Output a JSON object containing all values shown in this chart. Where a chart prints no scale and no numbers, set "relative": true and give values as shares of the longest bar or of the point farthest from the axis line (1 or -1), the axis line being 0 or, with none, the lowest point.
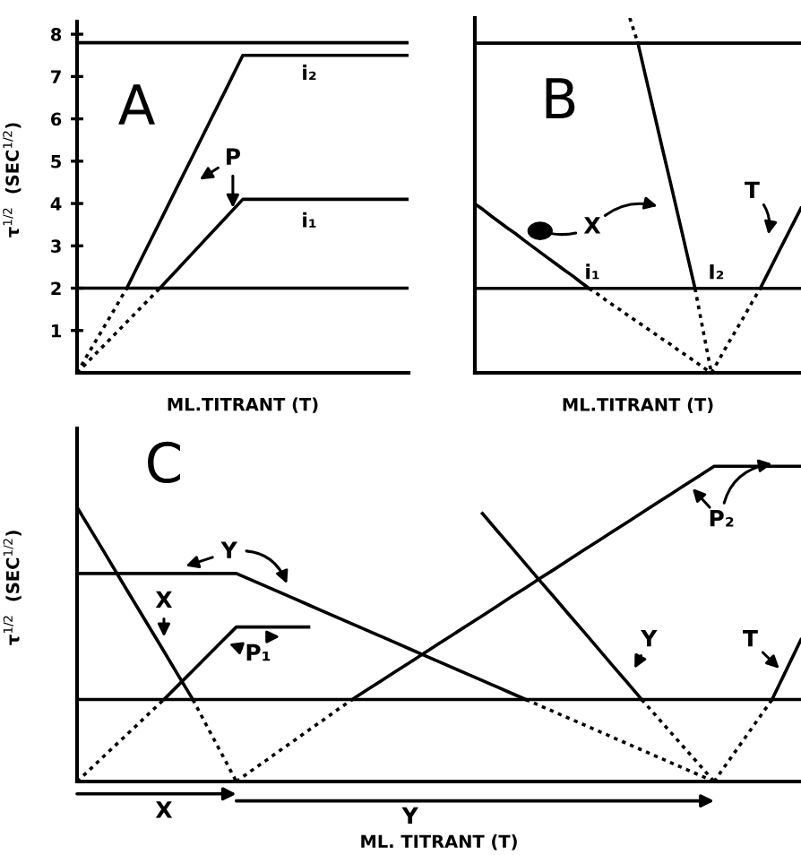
{
  "chart_data": [
    {
      "type": "line",
      "title": "A",
      "xlabel": "ML.TITRANT (T)",
      "ylabel": "τ$^{1/2}$  (SEC$^{1/2}$)",
      "categories": [
        null,
        null,
        null,
        null,
        null,
        null,
        null,
        null,
        null,
        null,
        null,
        null,
        null,
        null,
        null,
        null,
        null,
        null,
        null,
        null,
        null
      ],
      "ylim": [
        0,
        8.3
      ],
      "yticks": [
        1,
        2,
        3,
        4,
        5,
        6,
        7,
        8
      ],
      "tick_labels": "y",
      "ref_lines": [
        {
          "axis": "y",
          "value": 7.8
        },
        {
          "axis": "y",
          "value": 2
        }
      ],
      "annotations": [
        "P"
      ],
      "series": [
        {
          "color": "#000000",
          "line_style": "dotted",
          "values": [
            0,
            0.67,
            1.33,
            2,
            null,
            null,
            null,
            null,
            null,
            null,
            null,
            null,
            null,
            null,
            null,
            null,
            null,
            null,
            null,
            null,
            null
          ]
        },
        {
          "name": "i₂",
          "color": "#000000",
          "line_style": "solid",
          "values": [
            null,
            null,
            null,
            2,
            2.79,
            3.57,
            4.36,
            5.14,
            5.93,
            6.71,
            7.5,
            7.5,
            7.5,
            7.5,
            7.5,
            7.5,
            7.5,
            7.5,
            7.5,
            7.5,
            7.5
          ]
        },
        {
          "color": "#000000",
          "line_style": "dotted",
          "values": [
            0,
            0.4,
            0.8,
            1.2,
            1.6,
            2,
            null,
            null,
            null,
            null,
            null,
            null,
            null,
            null,
            null,
            null,
            null,
            null,
            null,
            null,
            null
          ]
        },
        {
          "name": "i₁",
          "color": "#000000",
          "line_style": "solid",
          "values": [
            null,
            null,
            null,
            null,
            null,
            2,
            2.42,
            2.84,
            3.26,
            3.68,
            4.1,
            4.1,
            4.1,
            4.1,
            4.1,
            4.1,
            4.1,
            4.1,
            4.1,
            4.1,
            4.1
          ]
        }
      ]
    },
    {
      "type": "line",
      "title": "B",
      "xlabel": "ML.TITRANT (T)",
      "categories": [
        null,
        null,
        null,
        null,
        null,
        null,
        null,
        null,
        null,
        null,
        null,
        null,
        null,
        null,
        null,
        null,
        null,
        null,
        null,
        null,
        null,
        null,
        null,
        null,
        null,
        null,
        null,
        null,
        null,
        null,
        null,
        null,
        null,
        null,
        null,
        null,
        null,
        null,
        null,
        null,
        null
      ],
      "relative": true,
      "tick_labels": false,
      "ref_lines": [
        {
          "axis": "y",
          "value": 0.929
        },
        {
          "axis": "y",
          "value": 0.238
        }
      ],
      "annotations": [
        "X",
        "T"
      ],
      "series": [
        {
          "name": "i₁",
          "color": "#000000",
          "line_style": "solid",
          "values": [
            0.476,
            0.46,
            0.442,
            0.425,
            0.408,
            0.392,
            0.374,
            0.357,
            0.34,
            0.323,
            0.306,
            0.289,
            0.273,
            0.255,
            0.238,
            null,
            null,
            null,
            null,
            null,
            null,
            null,
            null,
            null,
            null,
            null,
            null,
            null,
            null,
            null,
            null,
            null,
            null,
            null,
            null,
            null,
            null,
            null,
            null,
            null,
            null
          ]
        },
        {
          "color": "#000000",
          "line_style": "dotted",
          "values": [
            null,
            null,
            null,
            null,
            null,
            null,
            null,
            null,
            null,
            null,
            null,
            null,
            null,
            null,
            0.238,
            0.223,
            0.206,
            0.19,
            0.175,
            0.158,
            0.143,
            0.127,
            0.111,
            0.095,
            0.08,
            0.063,
            0.048,
            0.032,
            0.015,
            0,
            null,
            null,
            null,
            null,
            null,
            null,
            null,
            null,
            null,
            null,
            null
          ]
        },
        {
          "color": "#000000",
          "line_style": "dotted",
          "values": [
            null,
            null,
            null,
            null,
            null,
            null,
            null,
            null,
            null,
            null,
            null,
            null,
            null,
            null,
            null,
            null,
            null,
            null,
            null,
            1,
            0.929,
            null,
            null,
            null,
            null,
            null,
            null,
            null,
            null,
            null,
            null,
            null,
            null,
            null,
            null,
            null,
            null,
            null,
            null,
            null,
            null
          ]
        },
        {
          "name": "I₂",
          "color": "#000000",
          "line_style": "solid",
          "values": [
            null,
            null,
            null,
            null,
            null,
            null,
            null,
            null,
            null,
            null,
            null,
            null,
            null,
            null,
            null,
            null,
            null,
            null,
            null,
            null,
            0.929,
            0.83,
            0.731,
            0.632,
            0.535,
            0.436,
            0.337,
            0.238,
            null,
            null,
            null,
            null,
            null,
            null,
            null,
            null,
            null,
            null,
            null,
            null,
            null
          ]
        },
        {
          "color": "#000000",
          "line_style": "dotted",
          "values": [
            null,
            null,
            null,
            null,
            null,
            null,
            null,
            null,
            null,
            null,
            null,
            null,
            null,
            null,
            null,
            null,
            null,
            null,
            null,
            null,
            null,
            null,
            null,
            null,
            null,
            null,
            null,
            0.238,
            0.119,
            0,
            null,
            null,
            null,
            null,
            null,
            null,
            null,
            null,
            null,
            null,
            null
          ]
        },
        {
          "color": "#000000",
          "line_style": "dotted",
          "values": [
            null,
            null,
            null,
            null,
            null,
            null,
            null,
            null,
            null,
            null,
            null,
            null,
            null,
            null,
            null,
            null,
            null,
            null,
            null,
            null,
            null,
            null,
            null,
            null,
            null,
            null,
            null,
            null,
            null,
            0,
            0.039,
            0.08,
            0.119,
            0.158,
            0.199,
            0.238,
            null,
            null,
            null,
            null,
            null
          ]
        },
        {
          "color": "#000000",
          "line_style": "solid",
          "values": [
            null,
            null,
            null,
            null,
            null,
            null,
            null,
            null,
            null,
            null,
            null,
            null,
            null,
            null,
            null,
            null,
            null,
            null,
            null,
            null,
            null,
            null,
            null,
            null,
            null,
            null,
            null,
            null,
            null,
            null,
            null,
            null,
            null,
            null,
            null,
            0.238,
            0.283,
            0.329,
            0.374,
            0.419,
            0.464
          ]
        }
      ]
    },
    {
      "type": "line",
      "title": "C",
      "xlabel": "ML. TITRANT (T)",
      "ylabel": "τ$^{1/2}$  (SEC$^{1/2}$)",
      "relative": true,
      "tick_labels": false,
      "categories": [
        null,
        null,
        null,
        null,
        null,
        null,
        null,
        null,
        null,
        null,
        null,
        null,
        null,
        null,
        null,
        null,
        null,
        null,
        null,
        null,
        null,
        null,
        null,
        null,
        null,
        null,
        null,
        null,
        null,
        null,
        null,
        null,
        null,
        null,
        null,
        null,
        null,
        null,
        null,
        null,
        null,
        null,
        null,
        null,
        null,
        null,
        null,
        null,
        null,
        null,
        null
      ],
      "ref_lines": [
        {
          "axis": "y",
          "value": 0.26
        }
      ],
      "annotations": [
        "X",
        "Y",
        "P₁",
        "P₂",
        "Y",
        "T",
        "X",
        "Y"
      ],
      "series": [
        {
          "color": "#000000",
          "line_style": "solid",
          "values": [
            0.87,
            0.794,
            0.718,
            0.641,
            0.565,
            0.489,
            0.413,
            0.336,
            0.26,
            null,
            null,
            null,
            null,
            null,
            null,
            null,
            null,
            null,
            null,
            null,
            null,
            null,
            null,
            null,
            null,
            null,
            null,
            null,
            null,
            null,
            null,
            null,
            null,
            null,
            null,
            null,
            null,
            null,
            null,
            null,
            null,
            null,
            null,
            null,
            null,
            null,
            null,
            null,
            null,
            null,
            null
          ]
        },
        {
          "color": "#000000",
          "line_style": "dotted",
          "values": [
            null,
            null,
            null,
            null,
            null,
            null,
            null,
            null,
            0.26,
            0.173,
            0.087,
            0,
            null,
            null,
            null,
            null,
            null,
            null,
            null,
            null,
            null,
            null,
            null,
            null,
            null,
            null,
            null,
            null,
            null,
            null,
            null,
            null,
            null,
            null,
            null,
            null,
            null,
            null,
            null,
            null,
            null,
            null,
            null,
            null,
            null,
            null,
            null,
            null,
            null,
            null,
            null
          ]
        },
        {
          "color": "#000000",
          "line_style": "solid",
          "values": [
            0.66,
            0.66,
            0.66,
            0.66,
            0.66,
            0.66,
            0.66,
            0.66,
            0.66,
            0.66,
            0.66,
            0.66,
            0.64,
            0.62,
            0.6,
            0.58,
            0.56,
            0.54,
            0.52,
            0.5,
            0.48,
            0.46,
            0.44,
            0.42,
            0.4,
            0.38,
            0.36,
            0.34,
            0.32,
            0.3,
            0.28,
            0.26,
            null,
            null,
            null,
            null,
            null,
            null,
            null,
            null,
            null,
            null,
            null,
            null,
            null,
            null,
            null,
            null,
            null,
            null,
            null
          ]
        },
        {
          "color": "#000000",
          "line_style": "dotted",
          "values": [
            null,
            null,
            null,
            null,
            null,
            null,
            null,
            null,
            null,
            null,
            null,
            null,
            null,
            null,
            null,
            null,
            null,
            null,
            null,
            null,
            null,
            null,
            null,
            null,
            null,
            null,
            null,
            null,
            null,
            null,
            null,
            0.26,
            0.24,
            0.22,
            0.2,
            0.18,
            0.16,
            0.14,
            0.12,
            0.1,
            0.08,
            0.06,
            0.04,
            0.02,
            0,
            null,
            null,
            null,
            null,
            null,
            null
          ]
        },
        {
          "color": "#000000",
          "line_style": "dotted",
          "values": [
            0,
            0.043,
            0.087,
            0.13,
            0.173,
            0.217,
            0.26,
            null,
            null,
            null,
            null,
            null,
            null,
            null,
            null,
            null,
            null,
            null,
            null,
            null,
            null,
            null,
            null,
            null,
            null,
            null,
            null,
            null,
            null,
            null,
            null,
            null,
            null,
            null,
            null,
            null,
            null,
            null,
            null,
            null,
            null,
            null,
            null,
            null,
            null,
            null,
            null,
            null,
            null,
            null,
            null
          ]
        },
        {
          "color": "#000000",
          "line_style": "solid",
          "values": [
            null,
            null,
            null,
            null,
            null,
            null,
            0.26,
            0.306,
            0.352,
            0.398,
            0.444,
            0.49,
            0.49,
            0.49,
            0.49,
            0.49,
            0.49,
            null,
            null,
            null,
            null,
            null,
            null,
            null,
            null,
            null,
            null,
            null,
            null,
            null,
            null,
            null,
            null,
            null,
            null,
            null,
            null,
            null,
            null,
            null,
            null,
            null,
            null,
            null,
            null,
            null,
            null,
            null,
            null,
            null,
            null
          ]
        },
        {
          "color": "#000000",
          "line_style": "dotted",
          "values": [
            null,
            null,
            null,
            null,
            null,
            null,
            null,
            null,
            null,
            null,
            null,
            0,
            0.033,
            0.065,
            0.098,
            0.13,
            0.163,
            0.195,
            0.228,
            0.26,
            null,
            null,
            null,
            null,
            null,
            null,
            null,
            null,
            null,
            null,
            null,
            null,
            null,
            null,
            null,
            null,
            null,
            null,
            null,
            null,
            null,
            null,
            null,
            null,
            null,
            null,
            null,
            null,
            null,
            null,
            null
          ]
        },
        {
          "color": "#000000",
          "line_style": "solid",
          "values": [
            null,
            null,
            null,
            null,
            null,
            null,
            null,
            null,
            null,
            null,
            null,
            null,
            null,
            null,
            null,
            null,
            null,
            null,
            null,
            0.26,
            0.29,
            0.319,
            0.349,
            0.378,
            0.408,
            0.438,
            0.467,
            0.497,
            0.526,
            0.556,
            0.586,
            0.615,
            0.645,
            0.674,
            0.704,
            0.734,
            0.763,
            0.793,
            0.822,
            0.852,
            0.882,
            0.911,
            0.941,
            0.97,
            1,
            1,
            1,
            1,
            1,
            1,
            1
          ]
        },
        {
          "color": "#000000",
          "line_style": "solid",
          "values": [
            null,
            null,
            null,
            null,
            null,
            null,
            null,
            null,
            null,
            null,
            null,
            null,
            null,
            null,
            null,
            null,
            null,
            null,
            null,
            null,
            null,
            null,
            null,
            null,
            null,
            null,
            null,
            null,
            0.85,
            0.796,
            0.743,
            0.689,
            0.635,
            0.582,
            0.528,
            0.475,
            0.421,
            0.367,
            0.314,
            0.26,
            null,
            null,
            null,
            null,
            null,
            null,
            null,
            null,
            null,
            null,
            null
          ]
        },
        {
          "color": "#000000",
          "line_style": "dotted",
          "values": [
            null,
            null,
            null,
            null,
            null,
            null,
            null,
            null,
            null,
            null,
            null,
            null,
            null,
            null,
            null,
            null,
            null,
            null,
            null,
            null,
            null,
            null,
            null,
            null,
            null,
            null,
            null,
            null,
            null,
            null,
            null,
            null,
            null,
            null,
            null,
            null,
            null,
            null,
            null,
            0.26,
            0.208,
            0.156,
            0.104,
            0.052,
            0,
            null,
            null,
            null,
            null,
            null,
            null
          ]
        },
        {
          "color": "#000000",
          "line_style": "dotted",
          "values": [
            null,
            null,
            null,
            null,
            null,
            null,
            null,
            null,
            null,
            null,
            null,
            null,
            null,
            null,
            null,
            null,
            null,
            null,
            null,
            null,
            null,
            null,
            null,
            null,
            null,
            null,
            null,
            null,
            null,
            null,
            null,
            null,
            null,
            null,
            null,
            null,
            null,
            null,
            null,
            null,
            null,
            null,
            null,
            null,
            0,
            0.065,
            0.13,
            0.195,
            0.26,
            null,
            null
          ]
        },
        {
          "color": "#000000",
          "line_style": "solid",
          "values": [
            null,
            null,
            null,
            null,
            null,
            null,
            null,
            null,
            null,
            null,
            null,
            null,
            null,
            null,
            null,
            null,
            null,
            null,
            null,
            null,
            null,
            null,
            null,
            null,
            null,
            null,
            null,
            null,
            null,
            null,
            null,
            null,
            null,
            null,
            null,
            null,
            null,
            null,
            null,
            null,
            null,
            null,
            null,
            null,
            null,
            null,
            null,
            null,
            0.26,
            0.355,
            0.45
          ]
        }
      ]
    }
  ]
}
